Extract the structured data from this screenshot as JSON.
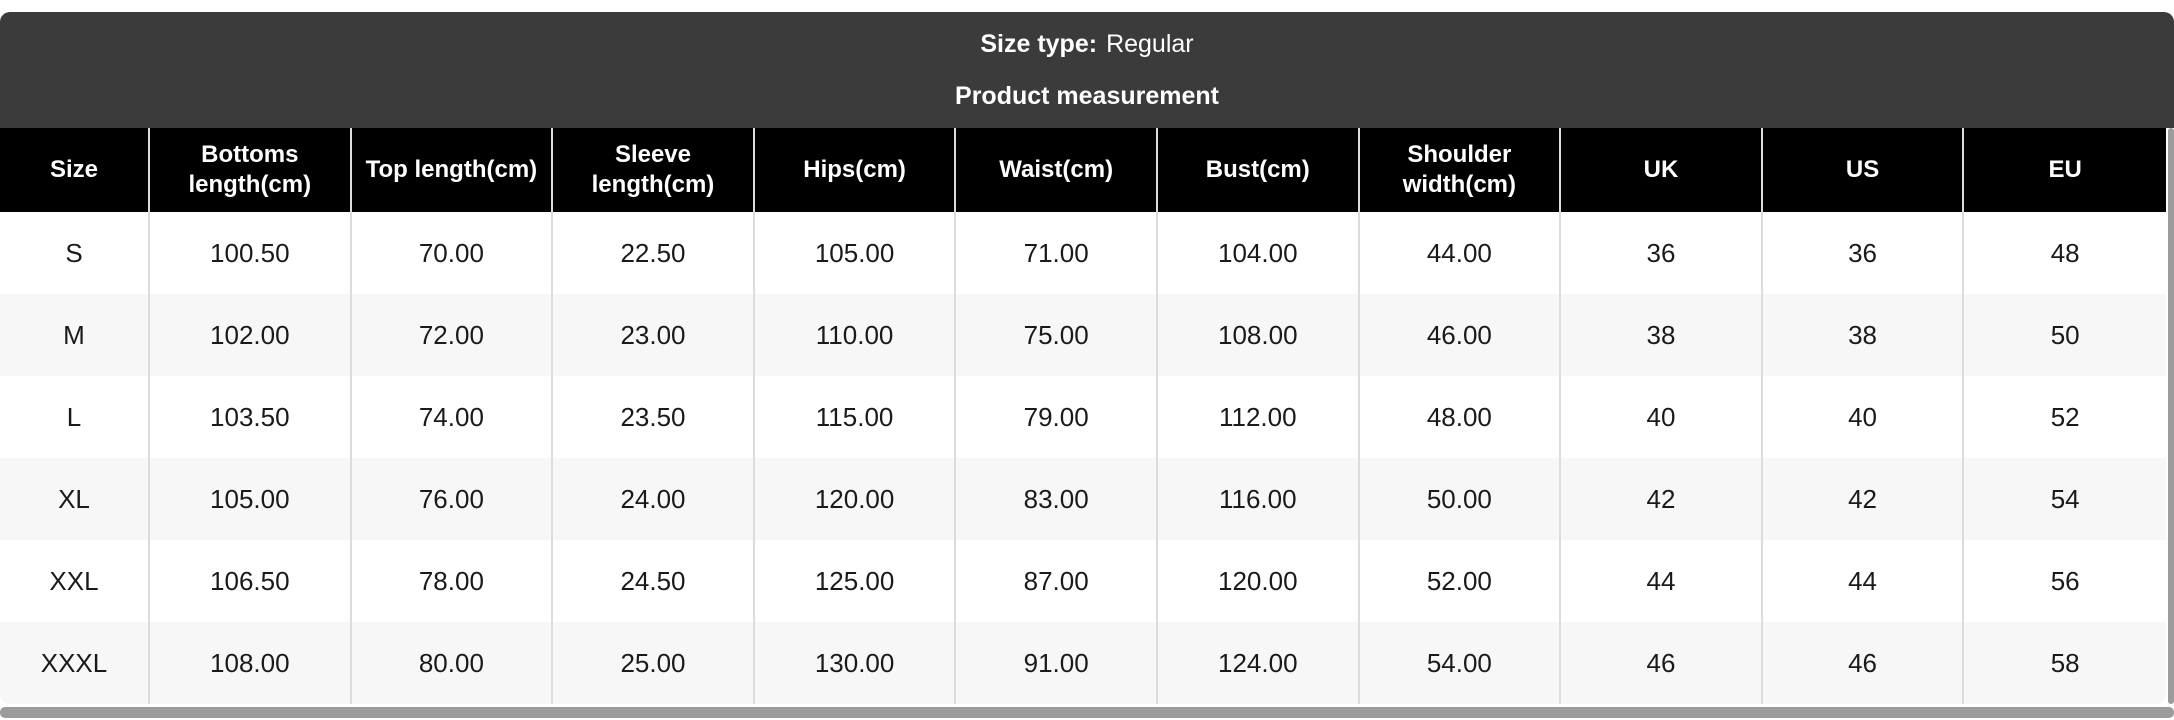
{
  "banner": {
    "size_type_label": "Size type:",
    "size_type_value": "Regular",
    "subtitle": "Product measurement"
  },
  "table": {
    "columns": [
      "Size",
      "Bottoms length(cm)",
      "Top length(cm)",
      "Sleeve length(cm)",
      "Hips(cm)",
      "Waist(cm)",
      "Bust(cm)",
      "Shoulder width(cm)",
      "UK",
      "US",
      "EU"
    ],
    "rows": [
      {
        "size": "S",
        "values": [
          "100.50",
          "70.00",
          "22.50",
          "105.00",
          "71.00",
          "104.00",
          "44.00",
          "36",
          "36",
          "48"
        ]
      },
      {
        "size": "M",
        "values": [
          "102.00",
          "72.00",
          "23.00",
          "110.00",
          "75.00",
          "108.00",
          "46.00",
          "38",
          "38",
          "50"
        ]
      },
      {
        "size": "L",
        "values": [
          "103.50",
          "74.00",
          "23.50",
          "115.00",
          "79.00",
          "112.00",
          "48.00",
          "40",
          "40",
          "52"
        ]
      },
      {
        "size": "XL",
        "values": [
          "105.00",
          "76.00",
          "24.00",
          "120.00",
          "83.00",
          "116.00",
          "50.00",
          "42",
          "42",
          "54"
        ]
      },
      {
        "size": "XXL",
        "values": [
          "106.50",
          "78.00",
          "24.50",
          "125.00",
          "87.00",
          "120.00",
          "52.00",
          "44",
          "44",
          "56"
        ]
      },
      {
        "size": "XXXL",
        "values": [
          "108.00",
          "80.00",
          "25.00",
          "130.00",
          "91.00",
          "124.00",
          "54.00",
          "46",
          "46",
          "58"
        ]
      }
    ]
  },
  "colors": {
    "banner_bg": "#3b3b3b",
    "header_bg": "#000000",
    "row_stripe": "#f7f7f7",
    "cell_border": "#dcdcdc",
    "banner_text": "#ffffff",
    "scrollbar": "#9b9b9b"
  }
}
